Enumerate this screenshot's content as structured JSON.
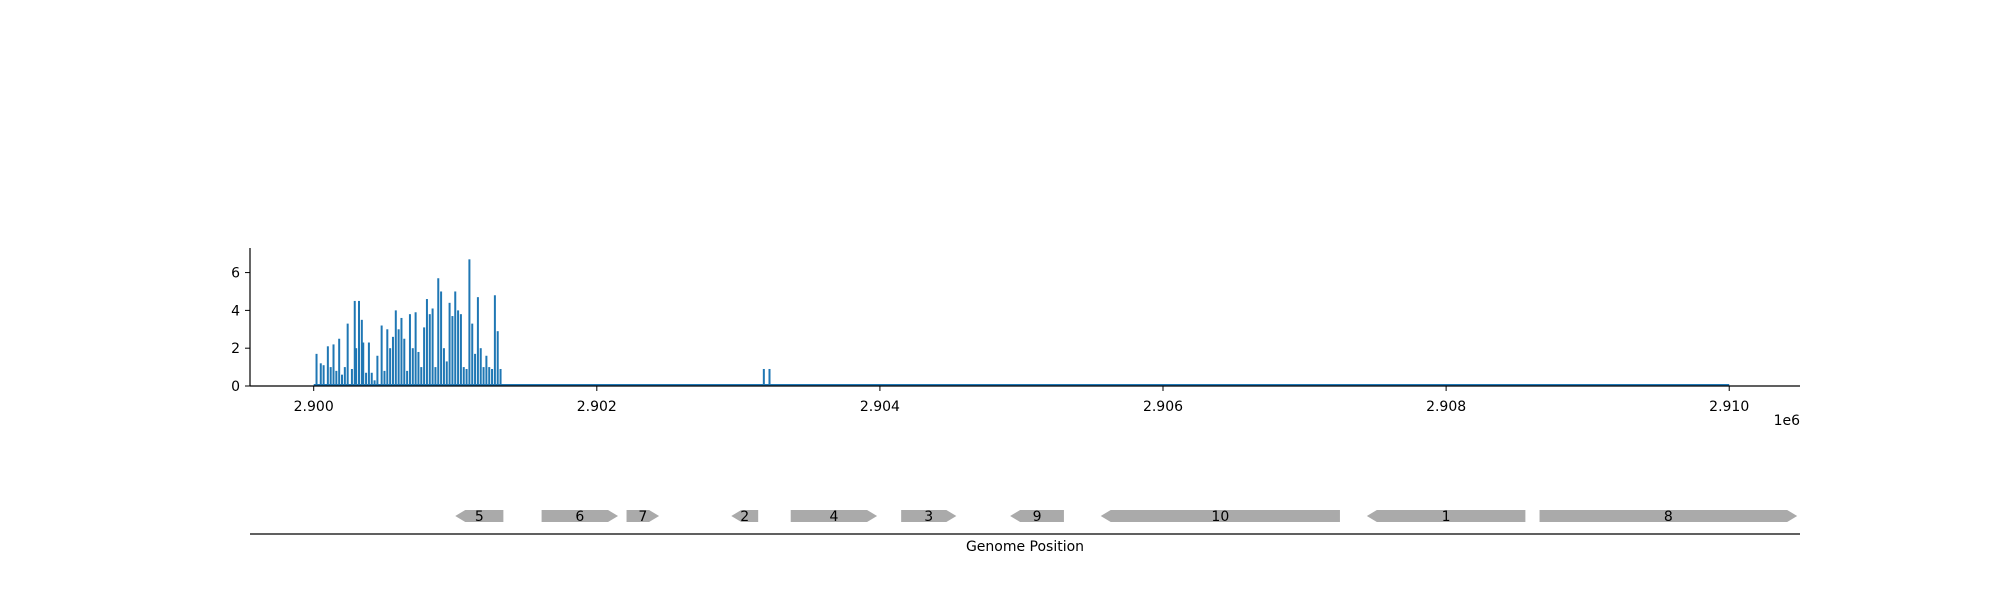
{
  "chart_data": [
    {
      "type": "bar",
      "title": "",
      "xlabel": "",
      "ylabel": "",
      "x_offset_text": "1e6",
      "xlim": [
        2899550,
        2910500
      ],
      "ylim": [
        0,
        7.3
      ],
      "x_ticks": [
        {
          "value": 2900000,
          "label": "2.900"
        },
        {
          "value": 2902000,
          "label": "2.902"
        },
        {
          "value": 2904000,
          "label": "2.904"
        },
        {
          "value": 2906000,
          "label": "2.906"
        },
        {
          "value": 2908000,
          "label": "2.908"
        },
        {
          "value": 2910000,
          "label": "2.910"
        }
      ],
      "y_ticks": [
        {
          "value": 0,
          "label": "0"
        },
        {
          "value": 2,
          "label": "2"
        },
        {
          "value": 4,
          "label": "4"
        },
        {
          "value": 6,
          "label": "6"
        }
      ],
      "color": "#1f77b4",
      "baseline_range": [
        2900000,
        2910000
      ],
      "x": [
        2900020,
        2900050,
        2900070,
        2900100,
        2900120,
        2900140,
        2900160,
        2900180,
        2900200,
        2900220,
        2900240,
        2900270,
        2900290,
        2900300,
        2900320,
        2900340,
        2900350,
        2900370,
        2900390,
        2900410,
        2900430,
        2900450,
        2900480,
        2900500,
        2900520,
        2900540,
        2900560,
        2900580,
        2900600,
        2900620,
        2900640,
        2900660,
        2900680,
        2900700,
        2900720,
        2900740,
        2900760,
        2900780,
        2900800,
        2900820,
        2900840,
        2900860,
        2900880,
        2900900,
        2900920,
        2900940,
        2900960,
        2900980,
        2901000,
        2901020,
        2901040,
        2901060,
        2901080,
        2901100,
        2901120,
        2901140,
        2901160,
        2901180,
        2901200,
        2901220,
        2901240,
        2901260,
        2901280,
        2901300,
        2901320,
        2903180,
        2903220
      ],
      "values": [
        1.7,
        1.2,
        1.1,
        2.1,
        1.0,
        2.2,
        0.8,
        2.5,
        0.6,
        1.0,
        3.3,
        0.9,
        4.5,
        2.0,
        4.5,
        3.5,
        2.3,
        0.7,
        2.3,
        0.7,
        0.3,
        1.6,
        3.2,
        0.8,
        3.0,
        2.0,
        2.6,
        4.0,
        3.0,
        3.6,
        2.5,
        0.8,
        3.8,
        2.0,
        3.9,
        1.8,
        1.0,
        3.1,
        4.6,
        3.8,
        4.1,
        1.0,
        5.7,
        5.0,
        2.0,
        1.3,
        4.4,
        3.7,
        5.0,
        4.0,
        3.8,
        1.0,
        0.9,
        6.7,
        3.3,
        1.7,
        4.7,
        2.0,
        1.0,
        1.6,
        1.0,
        0.9,
        4.8,
        2.9,
        0.9,
        0.9,
        0.9
      ]
    },
    {
      "type": "gene_track",
      "xlabel": "Genome Position",
      "color": "#aaaaaa",
      "genes": [
        {
          "label": "5",
          "start": 2901000,
          "end": 2901340,
          "strand": "-"
        },
        {
          "label": "6",
          "start": 2901610,
          "end": 2902150,
          "strand": "+"
        },
        {
          "label": "7",
          "start": 2902210,
          "end": 2902440,
          "strand": "+"
        },
        {
          "label": "2",
          "start": 2902950,
          "end": 2903140,
          "strand": "-"
        },
        {
          "label": "4",
          "start": 2903370,
          "end": 2903980,
          "strand": "+"
        },
        {
          "label": "3",
          "start": 2904150,
          "end": 2904540,
          "strand": "+"
        },
        {
          "label": "9",
          "start": 2904920,
          "end": 2905300,
          "strand": "-"
        },
        {
          "label": "10",
          "start": 2905560,
          "end": 2907250,
          "strand": "-"
        },
        {
          "label": "1",
          "start": 2907440,
          "end": 2908560,
          "strand": "-"
        },
        {
          "label": "8",
          "start": 2908660,
          "end": 2910480,
          "strand": "+"
        }
      ]
    }
  ]
}
